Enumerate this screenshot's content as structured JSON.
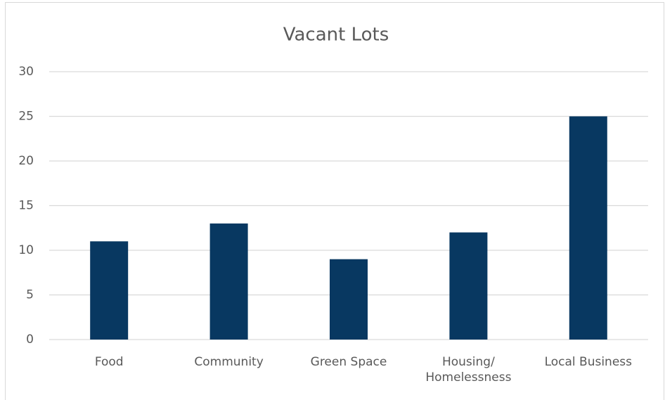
{
  "chart_data": {
    "type": "bar",
    "title": "Vacant Lots",
    "categories": [
      "Food",
      "Community",
      "Green Space",
      "Housing/\nHomelessness",
      "Local Business"
    ],
    "values": [
      11,
      13,
      9,
      12,
      25
    ],
    "color": "#083861",
    "ylim": [
      0,
      30
    ],
    "yticks": [
      0,
      5,
      10,
      15,
      20,
      25,
      30
    ],
    "grid": true
  }
}
